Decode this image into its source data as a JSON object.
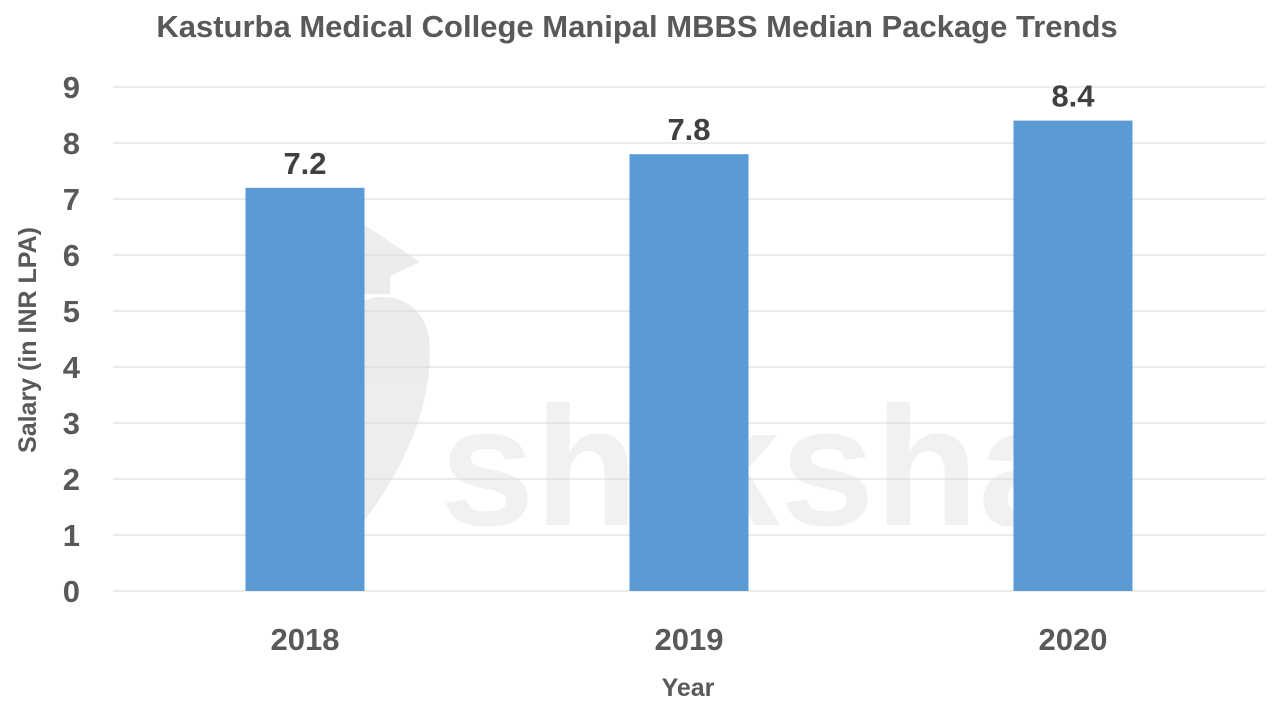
{
  "chart_data": {
    "type": "bar",
    "title": "Kasturba Medical College Manipal MBBS Median Package Trends",
    "xlabel": "Year",
    "ylabel": "Salary (in INR LPA)",
    "categories": [
      "2018",
      "2019",
      "2020"
    ],
    "values": [
      7.2,
      7.8,
      8.4
    ],
    "data_labels": [
      "7.2",
      "7.8",
      "8.4"
    ],
    "y_ticks": [
      "0",
      "1",
      "2",
      "3",
      "4",
      "5",
      "6",
      "7",
      "8",
      "9"
    ],
    "ylim": [
      0,
      9
    ],
    "grid": true,
    "legend": "none",
    "bar_color": "#5B9BD5"
  },
  "watermark": {
    "text": "shiksha",
    "icon": "graduation-cap-logo-icon"
  }
}
